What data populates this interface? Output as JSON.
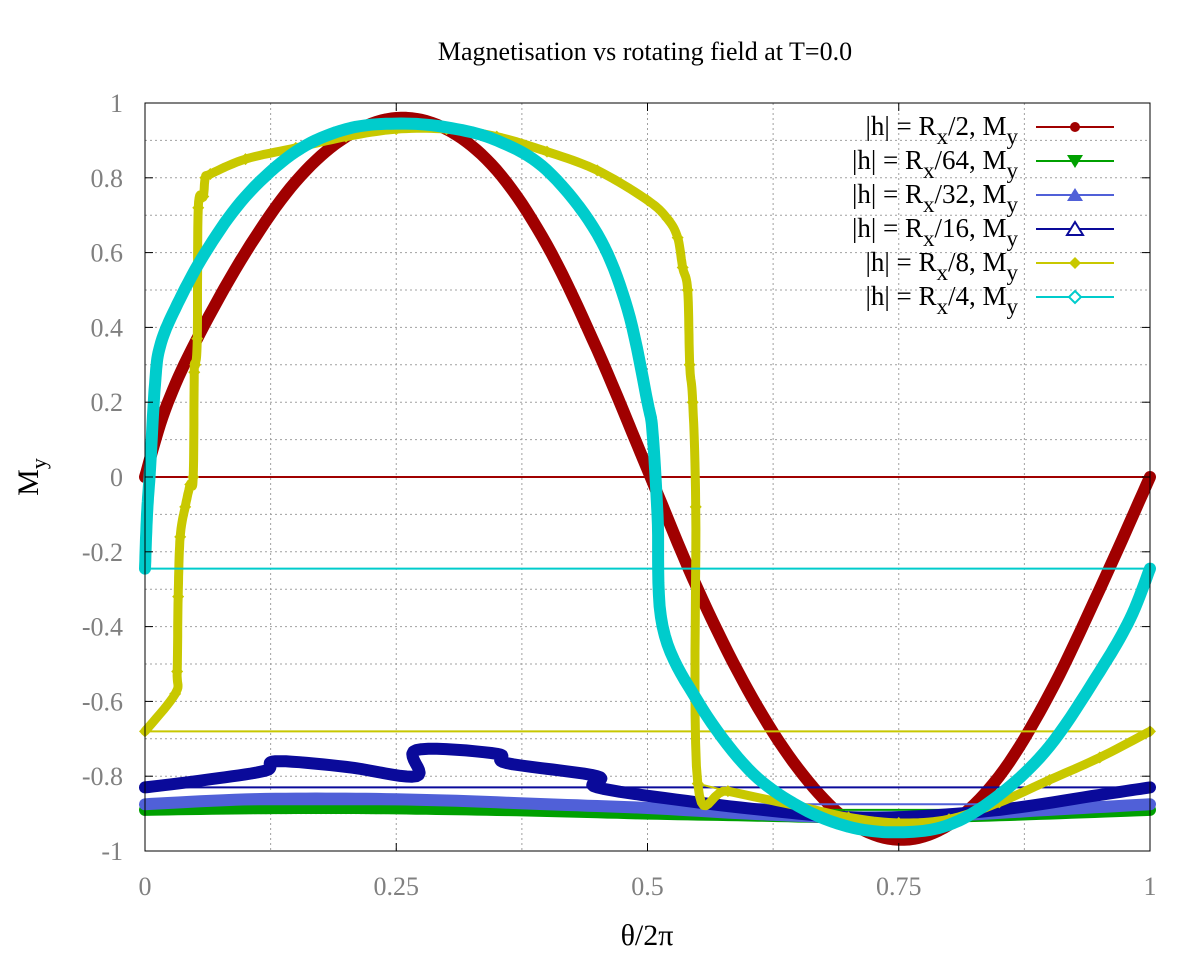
{
  "chart_data": {
    "type": "line",
    "title": "Magnetisation vs rotating field at T=0.0",
    "xlabel": "θ/2π",
    "ylabel": {
      "base": "M",
      "sub": "y"
    },
    "xlim": [
      0,
      1
    ],
    "ylim": [
      -1,
      1
    ],
    "xticks": [
      {
        "value": 0,
        "label": "0"
      },
      {
        "value": 0.25,
        "label": "0.25"
      },
      {
        "value": 0.5,
        "label": "0.5"
      },
      {
        "value": 0.75,
        "label": "0.75"
      },
      {
        "value": 1,
        "label": "1"
      }
    ],
    "yticks": [
      {
        "value": 1,
        "label": "1"
      },
      {
        "value": 0.8,
        "label": "0.8"
      },
      {
        "value": 0.6,
        "label": "0.6"
      },
      {
        "value": 0.4,
        "label": "0.4"
      },
      {
        "value": 0.2,
        "label": "0.2"
      },
      {
        "value": 0,
        "label": "0"
      },
      {
        "value": -0.2,
        "label": "-0.2"
      },
      {
        "value": -0.4,
        "label": "-0.4"
      },
      {
        "value": -0.6,
        "label": "-0.6"
      },
      {
        "value": -0.8,
        "label": "-0.8"
      },
      {
        "value": -1,
        "label": "-1"
      }
    ],
    "grid": true,
    "legend_position": "top-right",
    "series": [
      {
        "legend": {
          "pre": "|h| = R",
          "sub1": "x",
          "mid": "/2, M",
          "sub2": "y"
        },
        "color": "#a00000",
        "marker": "circle-filled",
        "return_line_y": 0,
        "points": [
          [
            0,
            0
          ],
          [
            0.02,
            0.18
          ],
          [
            0.05,
            0.36
          ],
          [
            0.1,
            0.6
          ],
          [
            0.15,
            0.79
          ],
          [
            0.2,
            0.91
          ],
          [
            0.25,
            0.96
          ],
          [
            0.3,
            0.93
          ],
          [
            0.35,
            0.82
          ],
          [
            0.4,
            0.62
          ],
          [
            0.45,
            0.34
          ],
          [
            0.5,
            0.02
          ],
          [
            0.55,
            -0.3
          ],
          [
            0.6,
            -0.57
          ],
          [
            0.65,
            -0.78
          ],
          [
            0.7,
            -0.92
          ],
          [
            0.75,
            -0.97
          ],
          [
            0.8,
            -0.93
          ],
          [
            0.85,
            -0.8
          ],
          [
            0.9,
            -0.58
          ],
          [
            0.95,
            -0.3
          ],
          [
            1,
            0
          ]
        ]
      },
      {
        "legend": {
          "pre": "|h| = R",
          "sub1": "x",
          "mid": "/64, M",
          "sub2": "y"
        },
        "color": "#00a000",
        "marker": "triangle-down-filled",
        "return_line_y": -0.89,
        "points": [
          [
            0,
            -0.89
          ],
          [
            0.1,
            -0.886
          ],
          [
            0.2,
            -0.885
          ],
          [
            0.3,
            -0.888
          ],
          [
            0.4,
            -0.893
          ],
          [
            0.5,
            -0.9
          ],
          [
            0.6,
            -0.905
          ],
          [
            0.7,
            -0.91
          ],
          [
            0.8,
            -0.908
          ],
          [
            0.9,
            -0.9
          ],
          [
            1,
            -0.89
          ]
        ]
      },
      {
        "legend": {
          "pre": "|h| = R",
          "sub1": "x",
          "mid": "/32, M",
          "sub2": "y"
        },
        "color": "#5060d8",
        "marker": "triangle-up-filled",
        "return_line_y": -0.875,
        "points": [
          [
            0,
            -0.875
          ],
          [
            0.1,
            -0.862
          ],
          [
            0.2,
            -0.86
          ],
          [
            0.3,
            -0.865
          ],
          [
            0.4,
            -0.875
          ],
          [
            0.5,
            -0.885
          ],
          [
            0.6,
            -0.9
          ],
          [
            0.7,
            -0.91
          ],
          [
            0.8,
            -0.905
          ],
          [
            0.9,
            -0.89
          ],
          [
            1,
            -0.875
          ]
        ]
      },
      {
        "legend": {
          "pre": "|h| = R",
          "sub1": "x",
          "mid": "/16, M",
          "sub2": "y"
        },
        "color": "#0a0a9a",
        "marker": "triangle-up-open",
        "return_line_y": -0.83,
        "points": [
          [
            0,
            -0.83
          ],
          [
            0.06,
            -0.81
          ],
          [
            0.12,
            -0.785
          ],
          [
            0.13,
            -0.76
          ],
          [
            0.2,
            -0.775
          ],
          [
            0.27,
            -0.8
          ],
          [
            0.27,
            -0.73
          ],
          [
            0.35,
            -0.74
          ],
          [
            0.36,
            -0.765
          ],
          [
            0.45,
            -0.8
          ],
          [
            0.45,
            -0.83
          ],
          [
            0.55,
            -0.87
          ],
          [
            0.65,
            -0.9
          ],
          [
            0.7,
            -0.91
          ],
          [
            0.75,
            -0.91
          ],
          [
            0.85,
            -0.89
          ],
          [
            0.95,
            -0.85
          ],
          [
            1,
            -0.83
          ]
        ]
      },
      {
        "legend": {
          "pre": "|h| = R",
          "sub1": "x",
          "mid": "/8, M",
          "sub2": "y"
        },
        "color": "#c8c800",
        "marker": "diamond-filled",
        "return_line_y": -0.68,
        "points": [
          [
            0,
            -0.68
          ],
          [
            0.03,
            -0.58
          ],
          [
            0.032,
            -0.52
          ],
          [
            0.033,
            -0.32
          ],
          [
            0.035,
            -0.16
          ],
          [
            0.04,
            -0.08
          ],
          [
            0.045,
            -0.02
          ],
          [
            0.048,
            0
          ],
          [
            0.049,
            0.28
          ],
          [
            0.05,
            0.3
          ],
          [
            0.052,
            0.37
          ],
          [
            0.053,
            0.72
          ],
          [
            0.058,
            0.75
          ],
          [
            0.06,
            0.8
          ],
          [
            0.065,
            0.81
          ],
          [
            0.1,
            0.85
          ],
          [
            0.15,
            0.88
          ],
          [
            0.2,
            0.91
          ],
          [
            0.25,
            0.93
          ],
          [
            0.3,
            0.93
          ],
          [
            0.35,
            0.91
          ],
          [
            0.4,
            0.87
          ],
          [
            0.45,
            0.82
          ],
          [
            0.5,
            0.74
          ],
          [
            0.52,
            0.69
          ],
          [
            0.53,
            0.64
          ],
          [
            0.535,
            0.56
          ],
          [
            0.54,
            0.5
          ],
          [
            0.542,
            0.3
          ],
          [
            0.545,
            0.2
          ],
          [
            0.548,
            -0.08
          ],
          [
            0.55,
            -0.82
          ],
          [
            0.58,
            -0.84
          ],
          [
            0.65,
            -0.88
          ],
          [
            0.7,
            -0.91
          ],
          [
            0.75,
            -0.925
          ],
          [
            0.8,
            -0.915
          ],
          [
            0.85,
            -0.87
          ],
          [
            0.9,
            -0.81
          ],
          [
            0.95,
            -0.75
          ],
          [
            1,
            -0.68
          ]
        ]
      },
      {
        "legend": {
          "pre": "|h| = R",
          "sub1": "x",
          "mid": "/4, M",
          "sub2": "y"
        },
        "color": "#00cccc",
        "marker": "diamond-open",
        "return_line_y": -0.245,
        "points": [
          [
            0,
            -0.245
          ],
          [
            0.002,
            -0.1
          ],
          [
            0.005,
            0.02
          ],
          [
            0.01,
            0.25
          ],
          [
            0.015,
            0.35
          ],
          [
            0.03,
            0.45
          ],
          [
            0.06,
            0.6
          ],
          [
            0.1,
            0.75
          ],
          [
            0.15,
            0.87
          ],
          [
            0.2,
            0.93
          ],
          [
            0.25,
            0.945
          ],
          [
            0.3,
            0.935
          ],
          [
            0.35,
            0.9
          ],
          [
            0.4,
            0.82
          ],
          [
            0.45,
            0.65
          ],
          [
            0.48,
            0.45
          ],
          [
            0.5,
            0.2
          ],
          [
            0.505,
            0.12
          ],
          [
            0.51,
            -0.1
          ],
          [
            0.515,
            -0.4
          ],
          [
            0.55,
            -0.6
          ],
          [
            0.6,
            -0.78
          ],
          [
            0.65,
            -0.88
          ],
          [
            0.7,
            -0.935
          ],
          [
            0.75,
            -0.95
          ],
          [
            0.8,
            -0.93
          ],
          [
            0.85,
            -0.85
          ],
          [
            0.9,
            -0.72
          ],
          [
            0.95,
            -0.52
          ],
          [
            0.98,
            -0.38
          ],
          [
            1,
            -0.245
          ]
        ]
      }
    ]
  }
}
